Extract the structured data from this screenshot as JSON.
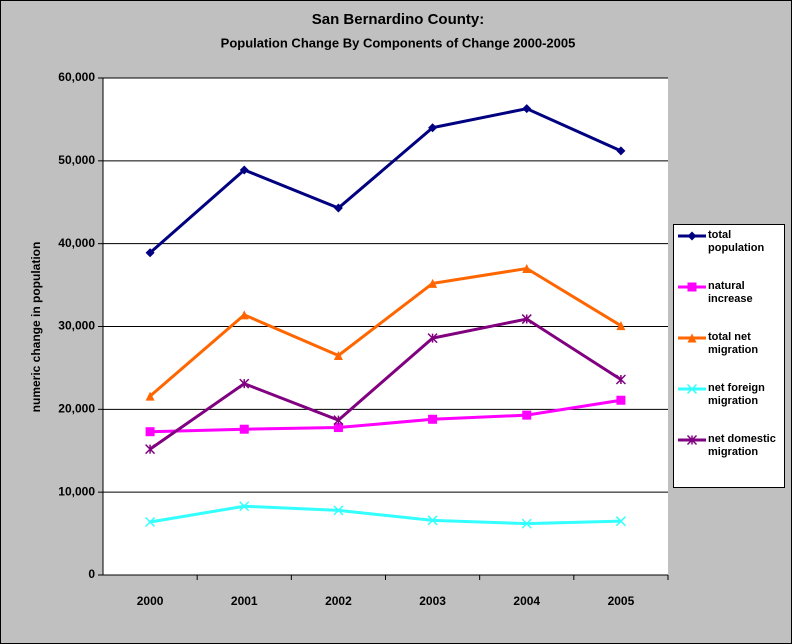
{
  "chart_data": {
    "type": "line",
    "title": "San Bernardino County:",
    "subtitle": "Population Change By Components of Change 2000-2005",
    "y_label": "numeric change in population",
    "categories": [
      "2000",
      "2001",
      "2002",
      "2003",
      "2004",
      "2005"
    ],
    "ylim": [
      0,
      60000
    ],
    "yticks": [
      0,
      {
        "value": 10000,
        "label": "10,000"
      },
      {
        "value": 20000,
        "label": "20,000"
      },
      {
        "value": 30000,
        "label": "30,000"
      },
      {
        "value": 40000,
        "label": "40,000"
      },
      {
        "value": 50000,
        "label": "50,000"
      },
      {
        "value": 60000,
        "label": "60,000"
      }
    ],
    "grid": true,
    "legend": "right",
    "series": [
      {
        "name": "total population",
        "color": "#000080",
        "marker": "diamond",
        "values": [
          38900,
          48900,
          44300,
          54000,
          56300,
          51200
        ]
      },
      {
        "name": "natural increase",
        "color": "#ff00ff",
        "marker": "square",
        "values": [
          17300,
          17600,
          17800,
          18800,
          19300,
          21100
        ]
      },
      {
        "name": "total net migration",
        "color": "#ff6600",
        "marker": "triangle",
        "values": [
          21600,
          31400,
          26500,
          35200,
          37000,
          30100
        ]
      },
      {
        "name": "net foreign migration",
        "color": "#33ffff",
        "marker": "x",
        "values": [
          6400,
          8300,
          7800,
          6600,
          6200,
          6500
        ]
      },
      {
        "name": "net domestic migration",
        "color": "#800080",
        "marker": "star",
        "values": [
          15200,
          23100,
          18700,
          28600,
          30900,
          23600
        ]
      }
    ]
  }
}
